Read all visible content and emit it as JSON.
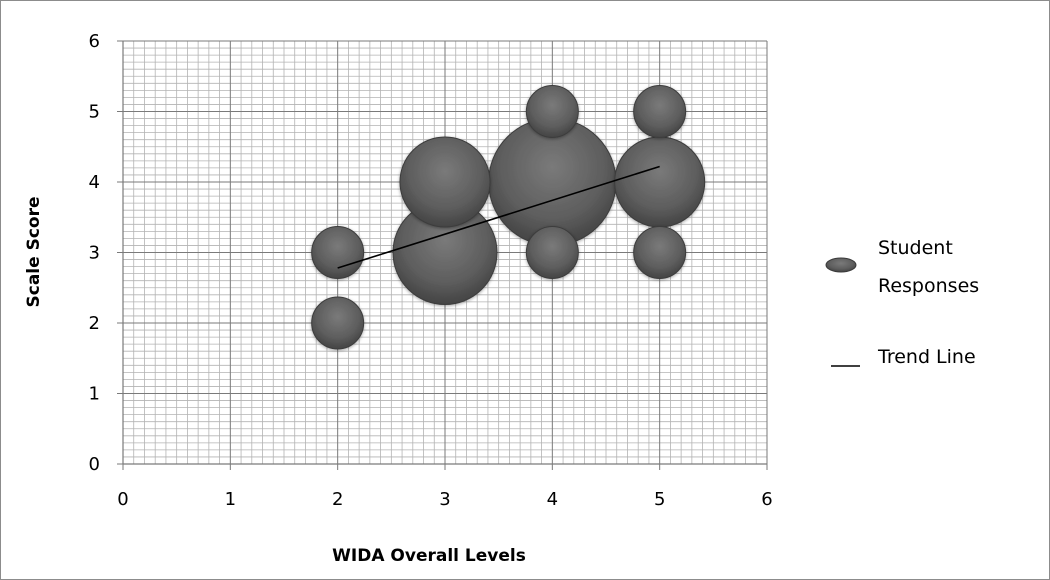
{
  "chart_data": {
    "type": "bubble",
    "xlabel": "WIDA Overall Levels",
    "ylabel": "Scale Score",
    "xlim": [
      0,
      6
    ],
    "ylim": [
      0,
      6
    ],
    "x_ticks": [
      "0",
      "1",
      "2",
      "3",
      "4",
      "5",
      "6"
    ],
    "y_ticks": [
      "0",
      "1",
      "2",
      "3",
      "4",
      "5",
      "6"
    ],
    "grid": "major and minor",
    "legend_position": "right",
    "series": [
      {
        "name": "Student Responses",
        "color": "#5e5e5e",
        "points": [
          {
            "x": 2,
            "y": 3,
            "size": 1
          },
          {
            "x": 2,
            "y": 2,
            "size": 1
          },
          {
            "x": 3,
            "y": 3,
            "size": 4
          },
          {
            "x": 3,
            "y": 4,
            "size": 3
          },
          {
            "x": 4,
            "y": 3,
            "size": 1
          },
          {
            "x": 4,
            "y": 4,
            "size": 6
          },
          {
            "x": 4,
            "y": 5,
            "size": 1
          },
          {
            "x": 5,
            "y": 3,
            "size": 1
          },
          {
            "x": 5,
            "y": 4,
            "size": 3
          },
          {
            "x": 5,
            "y": 5,
            "size": 1
          }
        ]
      },
      {
        "name": "Trend Line",
        "color": "#000000",
        "line": [
          {
            "x": 2,
            "y": 2.78
          },
          {
            "x": 5,
            "y": 4.22
          }
        ]
      }
    ]
  }
}
